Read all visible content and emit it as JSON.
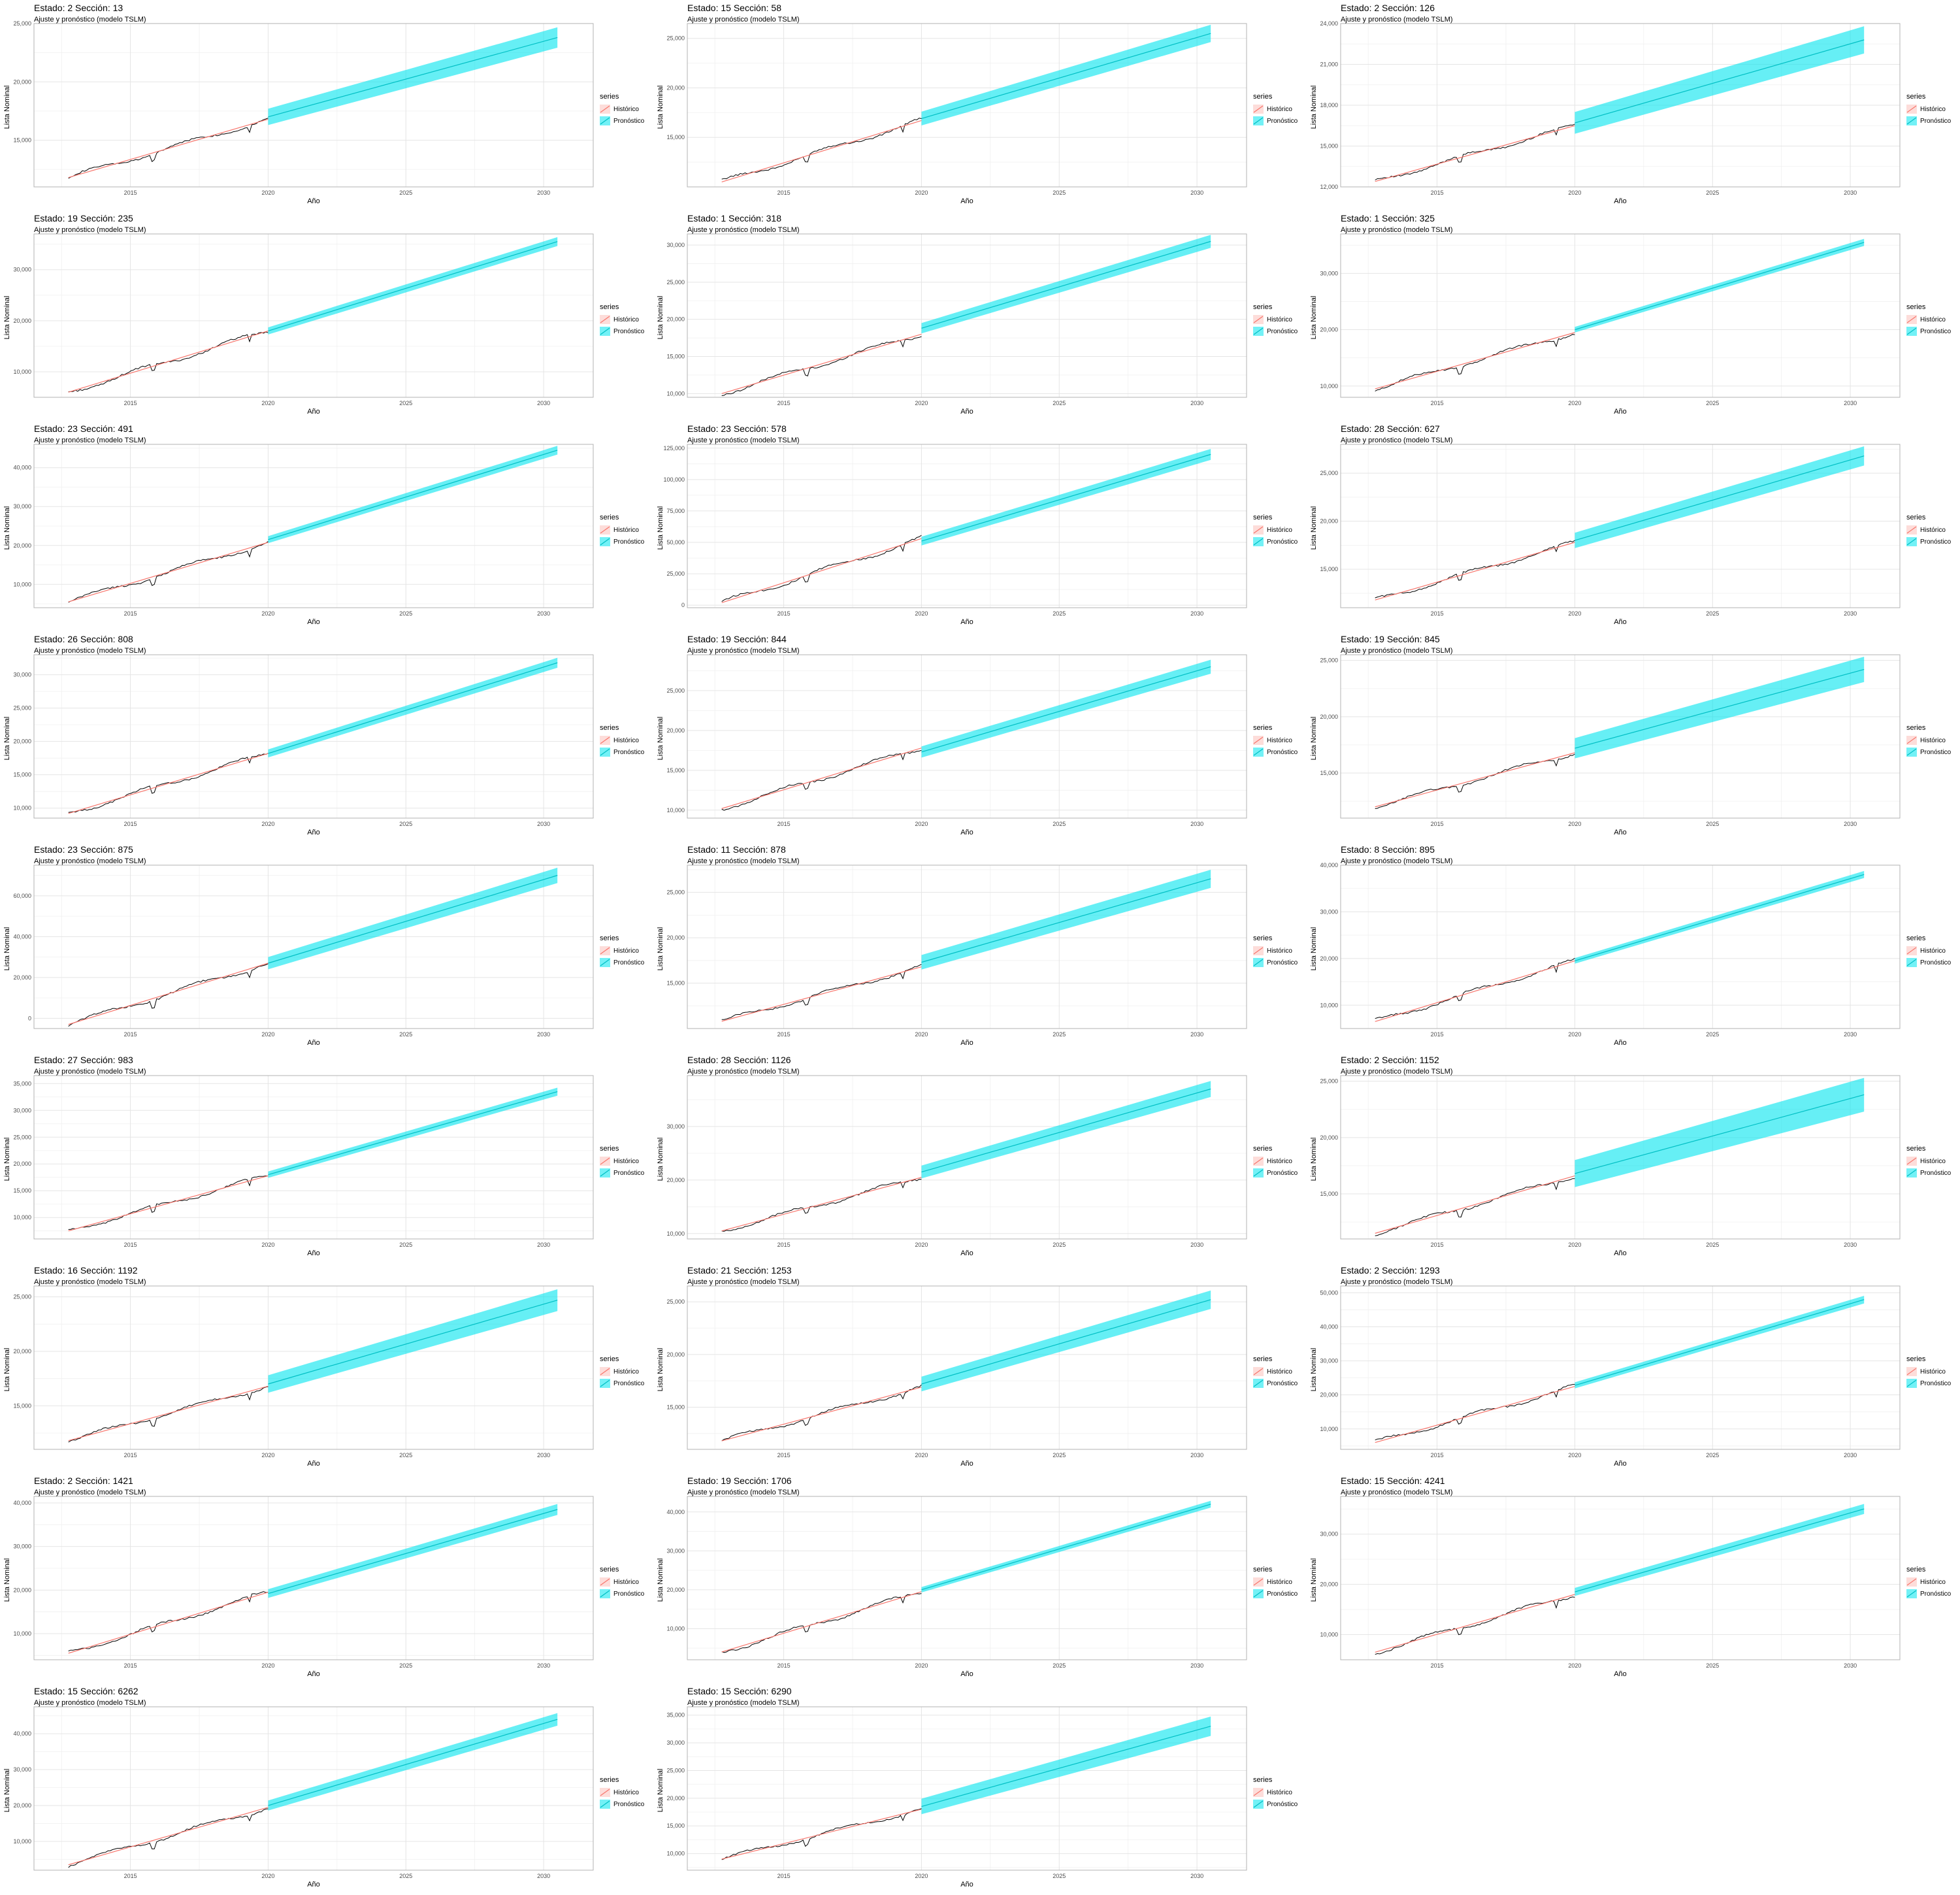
{
  "common": {
    "subtitle": "Ajuste y pronóstico (modelo TSLM)",
    "xlabel": "Año",
    "ylabel": "Lista Nominal",
    "legend_title": "series",
    "legend_items": [
      "Histórico",
      "Pronóstico"
    ],
    "x_ticks": [
      2015,
      2020,
      2025,
      2030
    ],
    "colors": {
      "historico": "#F8766D",
      "pronostico": "#00BFC4",
      "band": "#00E5EE",
      "actual": "#000000",
      "grid": "#e5e5e5"
    }
  },
  "chart_data": [
    {
      "type": "line",
      "title": "Estado: 2 Sección: 13",
      "ylim": [
        11000,
        25000
      ],
      "yticks": [
        15000,
        20000,
        25000
      ],
      "series": [
        {
          "name": "Histórico",
          "x": [
            2012.75,
            2020.0
          ],
          "y": [
            11800,
            16800
          ]
        },
        {
          "name": "Pronóstico",
          "x": [
            2020.0,
            2030.5
          ],
          "y": [
            17000,
            23800
          ],
          "band_halfwidth": 700
        }
      ]
    },
    {
      "type": "line",
      "title": "Estado: 15 Sección: 58",
      "ylim": [
        10000,
        26500
      ],
      "yticks": [
        15000,
        20000,
        25000
      ],
      "series": [
        {
          "name": "Histórico",
          "x": [
            2012.75,
            2020.0
          ],
          "y": [
            10500,
            16700
          ]
        },
        {
          "name": "Pronóstico",
          "x": [
            2020.0,
            2030.5
          ],
          "y": [
            16900,
            25500
          ],
          "band_halfwidth": 700
        }
      ]
    },
    {
      "type": "line",
      "title": "Estado: 2 Sección: 126",
      "ylim": [
        12000,
        24000
      ],
      "yticks": [
        12000,
        15000,
        18000,
        21000,
        24000
      ],
      "series": [
        {
          "name": "Histórico",
          "x": [
            2012.75,
            2020.0
          ],
          "y": [
            12400,
            16500
          ]
        },
        {
          "name": "Pronóstico",
          "x": [
            2020.0,
            2030.5
          ],
          "y": [
            16700,
            22800
          ],
          "band_halfwidth": 800
        }
      ]
    },
    {
      "type": "line",
      "title": "Estado: 19 Sección: 235",
      "ylim": [
        5000,
        37000
      ],
      "yticks": [
        10000,
        20000,
        30000
      ],
      "series": [
        {
          "name": "Histórico",
          "x": [
            2012.75,
            2020.0
          ],
          "y": [
            6000,
            18000
          ]
        },
        {
          "name": "Pronóstico",
          "x": [
            2020.0,
            2030.5
          ],
          "y": [
            18000,
            35500
          ],
          "band_halfwidth": 700
        }
      ]
    },
    {
      "type": "line",
      "title": "Estado: 1 Sección: 318",
      "ylim": [
        9500,
        31500
      ],
      "yticks": [
        10000,
        15000,
        20000,
        25000,
        30000
      ],
      "series": [
        {
          "name": "Histórico",
          "x": [
            2012.75,
            2020.0
          ],
          "y": [
            10000,
            18000
          ]
        },
        {
          "name": "Pronóstico",
          "x": [
            2020.0,
            2030.5
          ],
          "y": [
            18800,
            30500
          ],
          "band_halfwidth": 700
        }
      ]
    },
    {
      "type": "line",
      "title": "Estado: 1 Sección: 325",
      "ylim": [
        8000,
        37000
      ],
      "yticks": [
        10000,
        20000,
        30000
      ],
      "series": [
        {
          "name": "Histórico",
          "x": [
            2012.75,
            2020.0
          ],
          "y": [
            9500,
            19500
          ]
        },
        {
          "name": "Pronóstico",
          "x": [
            2020.0,
            2030.5
          ],
          "y": [
            20000,
            35500
          ],
          "band_halfwidth": 500
        }
      ]
    },
    {
      "type": "line",
      "title": "Estado: 23 Sección: 491",
      "ylim": [
        4000,
        46000
      ],
      "yticks": [
        10000,
        20000,
        30000,
        40000
      ],
      "series": [
        {
          "name": "Histórico",
          "x": [
            2012.75,
            2020.0
          ],
          "y": [
            5500,
            20800
          ]
        },
        {
          "name": "Pronóstico",
          "x": [
            2020.0,
            2030.5
          ],
          "y": [
            21500,
            44500
          ],
          "band_halfwidth": 900
        }
      ]
    },
    {
      "type": "line",
      "title": "Estado: 23 Sección: 578",
      "ylim": [
        -2000,
        128000
      ],
      "yticks": [
        0,
        25000,
        50000,
        75000,
        100000,
        125000
      ],
      "series": [
        {
          "name": "Histórico",
          "x": [
            2012.75,
            2020.0
          ],
          "y": [
            2000,
            53000
          ]
        },
        {
          "name": "Pronóstico",
          "x": [
            2020.0,
            2030.5
          ],
          "y": [
            51000,
            120000
          ],
          "band_halfwidth": 3500
        }
      ]
    },
    {
      "type": "line",
      "title": "Estado: 28 Sección: 627",
      "ylim": [
        11000,
        28000
      ],
      "yticks": [
        15000,
        20000,
        25000
      ],
      "series": [
        {
          "name": "Histórico",
          "x": [
            2012.75,
            2020.0
          ],
          "y": [
            11800,
            17800
          ]
        },
        {
          "name": "Pronóstico",
          "x": [
            2020.0,
            2030.5
          ],
          "y": [
            18000,
            26800
          ],
          "band_halfwidth": 800
        }
      ]
    },
    {
      "type": "line",
      "title": "Estado: 26 Sección: 808",
      "ylim": [
        8500,
        33000
      ],
      "yticks": [
        10000,
        15000,
        20000,
        25000,
        30000
      ],
      "series": [
        {
          "name": "Histórico",
          "x": [
            2012.75,
            2020.0
          ],
          "y": [
            9200,
            18200
          ]
        },
        {
          "name": "Pronóstico",
          "x": [
            2020.0,
            2030.5
          ],
          "y": [
            18200,
            31800
          ],
          "band_halfwidth": 600
        }
      ]
    },
    {
      "type": "line",
      "title": "Estado: 19 Sección: 844",
      "ylim": [
        9000,
        29500
      ],
      "yticks": [
        10000,
        15000,
        20000,
        25000
      ],
      "series": [
        {
          "name": "Histórico",
          "x": [
            2012.75,
            2020.0
          ],
          "y": [
            10200,
            17800
          ]
        },
        {
          "name": "Pronóstico",
          "x": [
            2020.0,
            2030.5
          ],
          "y": [
            17300,
            28000
          ],
          "band_halfwidth": 700
        }
      ]
    },
    {
      "type": "line",
      "title": "Estado: 19 Sección: 845",
      "ylim": [
        11000,
        25500
      ],
      "yticks": [
        15000,
        20000,
        25000
      ],
      "series": [
        {
          "name": "Histórico",
          "x": [
            2012.75,
            2020.0
          ],
          "y": [
            12000,
            16800
          ]
        },
        {
          "name": "Pronóstico",
          "x": [
            2020.0,
            2030.5
          ],
          "y": [
            17200,
            24200
          ],
          "band_halfwidth": 900
        }
      ]
    },
    {
      "type": "line",
      "title": "Estado: 23 Sección: 875",
      "ylim": [
        -5000,
        75000
      ],
      "yticks": [
        0,
        20000,
        40000,
        60000
      ],
      "series": [
        {
          "name": "Histórico",
          "x": [
            2012.75,
            2020.0
          ],
          "y": [
            -3000,
            27000
          ]
        },
        {
          "name": "Pronóstico",
          "x": [
            2020.0,
            2030.5
          ],
          "y": [
            27000,
            70000
          ],
          "band_halfwidth": 3000
        }
      ]
    },
    {
      "type": "line",
      "title": "Estado: 11 Sección: 878",
      "ylim": [
        10000,
        28000
      ],
      "yticks": [
        15000,
        20000,
        25000
      ],
      "series": [
        {
          "name": "Histórico",
          "x": [
            2012.75,
            2020.0
          ],
          "y": [
            10800,
            16800
          ]
        },
        {
          "name": "Pronóstico",
          "x": [
            2020.0,
            2030.5
          ],
          "y": [
            17300,
            26500
          ],
          "band_halfwidth": 800
        }
      ]
    },
    {
      "type": "line",
      "title": "Estado: 8 Sección: 895",
      "ylim": [
        5000,
        40000
      ],
      "yticks": [
        10000,
        20000,
        30000,
        40000
      ],
      "series": [
        {
          "name": "Histórico",
          "x": [
            2012.75,
            2020.0
          ],
          "y": [
            6500,
            19500
          ]
        },
        {
          "name": "Pronóstico",
          "x": [
            2020.0,
            2030.5
          ],
          "y": [
            19500,
            38000
          ],
          "band_halfwidth": 600
        }
      ]
    },
    {
      "type": "line",
      "title": "Estado: 27 Sección: 983",
      "ylim": [
        6000,
        36500
      ],
      "yticks": [
        10000,
        15000,
        20000,
        25000,
        30000,
        35000
      ],
      "series": [
        {
          "name": "Histórico",
          "x": [
            2012.75,
            2020.0
          ],
          "y": [
            7500,
            17800
          ]
        },
        {
          "name": "Pronóstico",
          "x": [
            2020.0,
            2030.5
          ],
          "y": [
            18000,
            33500
          ],
          "band_halfwidth": 600
        }
      ]
    },
    {
      "type": "line",
      "title": "Estado: 28 Sección: 1126",
      "ylim": [
        9000,
        39500
      ],
      "yticks": [
        10000,
        20000,
        30000
      ],
      "series": [
        {
          "name": "Histórico",
          "x": [
            2012.75,
            2020.0
          ],
          "y": [
            10500,
            20500
          ]
        },
        {
          "name": "Pronóstico",
          "x": [
            2020.0,
            2030.5
          ],
          "y": [
            21500,
            37000
          ],
          "band_halfwidth": 1200
        }
      ]
    },
    {
      "type": "line",
      "title": "Estado: 2 Sección: 1152",
      "ylim": [
        11000,
        25500
      ],
      "yticks": [
        15000,
        20000,
        25000
      ],
      "series": [
        {
          "name": "Histórico",
          "x": [
            2012.75,
            2020.0
          ],
          "y": [
            11500,
            16600
          ]
        },
        {
          "name": "Pronóstico",
          "x": [
            2020.0,
            2030.5
          ],
          "y": [
            16800,
            23800
          ],
          "band_halfwidth": 1200
        }
      ]
    },
    {
      "type": "line",
      "title": "Estado: 16 Sección: 1192",
      "ylim": [
        11000,
        26000
      ],
      "yticks": [
        15000,
        20000,
        25000
      ],
      "series": [
        {
          "name": "Histórico",
          "x": [
            2012.75,
            2020.0
          ],
          "y": [
            11800,
            16800
          ]
        },
        {
          "name": "Pronóstico",
          "x": [
            2020.0,
            2030.5
          ],
          "y": [
            17000,
            24700
          ],
          "band_halfwidth": 800
        }
      ]
    },
    {
      "type": "line",
      "title": "Estado: 21 Sección: 1253",
      "ylim": [
        11000,
        26500
      ],
      "yticks": [
        15000,
        20000,
        25000
      ],
      "series": [
        {
          "name": "Histórico",
          "x": [
            2012.75,
            2020.0
          ],
          "y": [
            11800,
            16900
          ]
        },
        {
          "name": "Pronóstico",
          "x": [
            2020.0,
            2030.5
          ],
          "y": [
            17200,
            25200
          ],
          "band_halfwidth": 700
        }
      ]
    },
    {
      "type": "line",
      "title": "Estado: 2 Sección: 1293",
      "ylim": [
        4000,
        52000
      ],
      "yticks": [
        10000,
        20000,
        30000,
        40000,
        50000
      ],
      "series": [
        {
          "name": "Histórico",
          "x": [
            2012.75,
            2020.0
          ],
          "y": [
            6000,
            22500
          ]
        },
        {
          "name": "Pronóstico",
          "x": [
            2020.0,
            2030.5
          ],
          "y": [
            22800,
            48000
          ],
          "band_halfwidth": 900
        }
      ]
    },
    {
      "type": "line",
      "title": "Estado: 2 Sección: 1421",
      "ylim": [
        4000,
        41500
      ],
      "yticks": [
        10000,
        20000,
        30000,
        40000
      ],
      "series": [
        {
          "name": "Histórico",
          "x": [
            2012.75,
            2020.0
          ],
          "y": [
            5500,
            19500
          ]
        },
        {
          "name": "Pronóstico",
          "x": [
            2020.0,
            2030.5
          ],
          "y": [
            19200,
            38500
          ],
          "band_halfwidth": 1000
        }
      ]
    },
    {
      "type": "line",
      "title": "Estado: 19 Sección: 1706",
      "ylim": [
        2000,
        44000
      ],
      "yticks": [
        10000,
        20000,
        30000,
        40000
      ],
      "series": [
        {
          "name": "Histórico",
          "x": [
            2012.75,
            2020.0
          ],
          "y": [
            4000,
            19500
          ]
        },
        {
          "name": "Pronóstico",
          "x": [
            2020.0,
            2030.5
          ],
          "y": [
            20000,
            42000
          ],
          "band_halfwidth": 700
        }
      ]
    },
    {
      "type": "line",
      "title": "Estado: 15 Sección: 4241",
      "ylim": [
        5000,
        37500
      ],
      "yticks": [
        10000,
        20000,
        30000
      ],
      "series": [
        {
          "name": "Histórico",
          "x": [
            2012.75,
            2020.0
          ],
          "y": [
            6500,
            18000
          ]
        },
        {
          "name": "Pronóstico",
          "x": [
            2020.0,
            2030.5
          ],
          "y": [
            18500,
            35000
          ],
          "band_halfwidth": 800
        }
      ]
    },
    {
      "type": "line",
      "title": "Estado: 15 Sección: 6262",
      "ylim": [
        2000,
        47500
      ],
      "yticks": [
        10000,
        20000,
        30000,
        40000
      ],
      "series": [
        {
          "name": "Histórico",
          "x": [
            2012.75,
            2020.0
          ],
          "y": [
            3500,
            19500
          ]
        },
        {
          "name": "Pronóstico",
          "x": [
            2020.0,
            2030.5
          ],
          "y": [
            20000,
            44000
          ],
          "band_halfwidth": 1400
        }
      ]
    },
    {
      "type": "line",
      "title": "Estado: 15 Sección: 6290",
      "ylim": [
        7000,
        36500
      ],
      "yticks": [
        10000,
        15000,
        20000,
        25000,
        30000,
        35000
      ],
      "series": [
        {
          "name": "Histórico",
          "x": [
            2012.75,
            2020.0
          ],
          "y": [
            9000,
            18000
          ]
        },
        {
          "name": "Pronóstico",
          "x": [
            2020.0,
            2030.5
          ],
          "y": [
            18500,
            33000
          ],
          "band_halfwidth": 1400
        }
      ]
    }
  ]
}
